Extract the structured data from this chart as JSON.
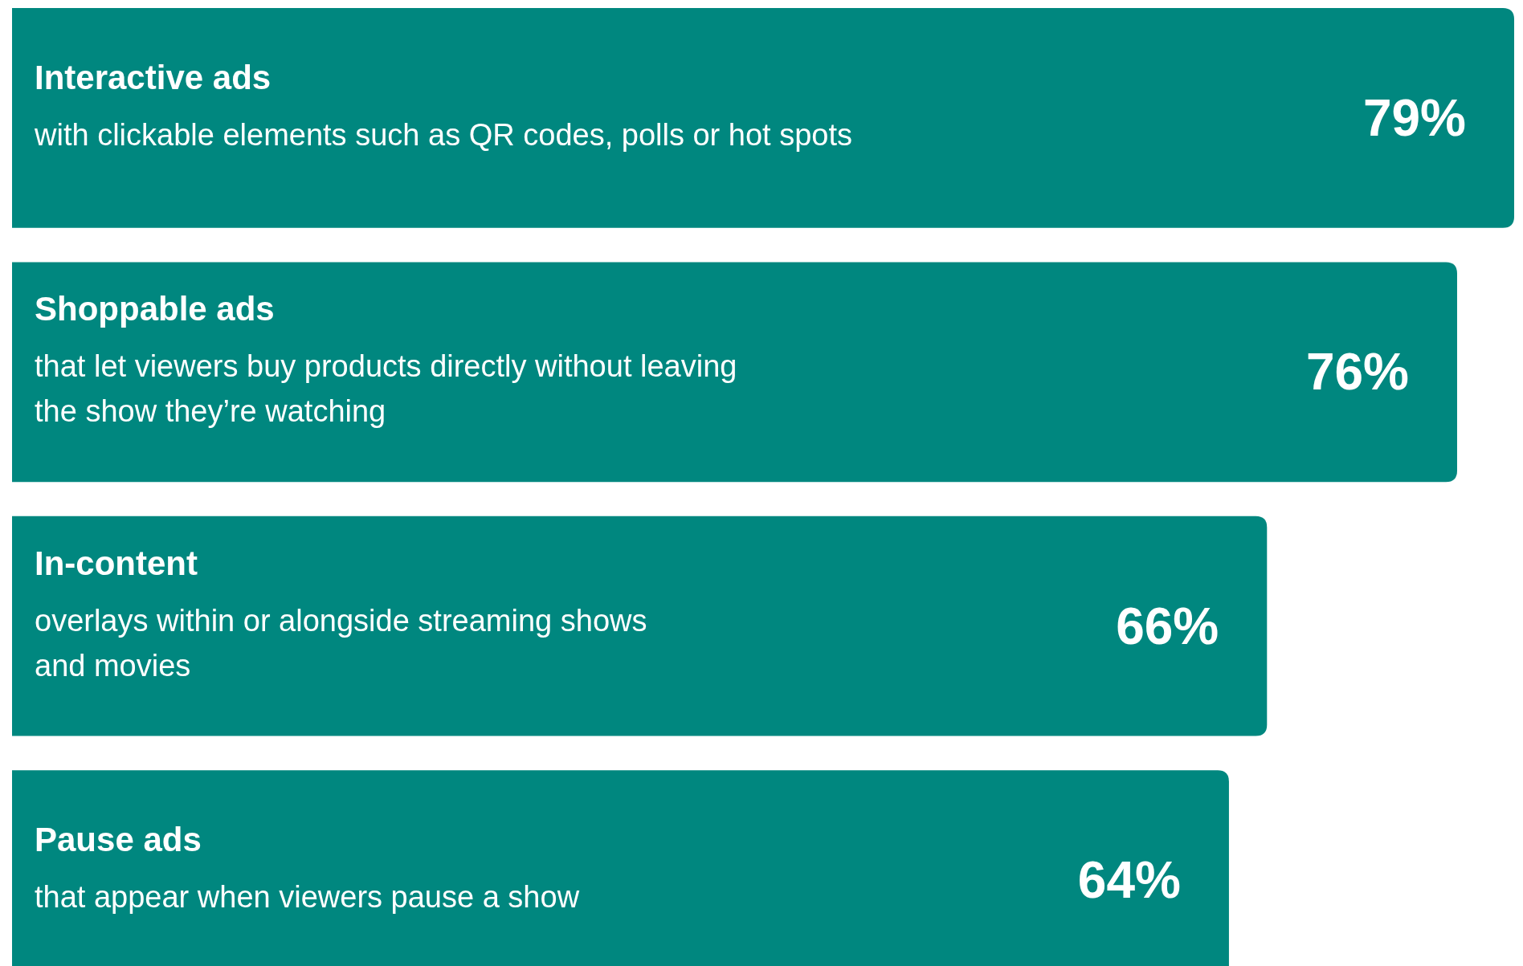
{
  "chart_data": {
    "type": "bar",
    "orientation": "horizontal",
    "categories": [
      "Interactive ads\nwith clickable elements such as QR codes, polls or hot spots",
      "Shoppable ads\nthat let viewers buy products directly without leaving\nthe show they’re watching",
      "In-content\noverlays within or alongside streaming shows\nand movies",
      "Pause ads\nthat appear when viewers pause a show"
    ],
    "values": [
      79,
      76,
      66,
      64
    ],
    "value_labels": [
      "79%",
      "76%",
      "66%",
      "64%"
    ],
    "color": "#00877f"
  }
}
